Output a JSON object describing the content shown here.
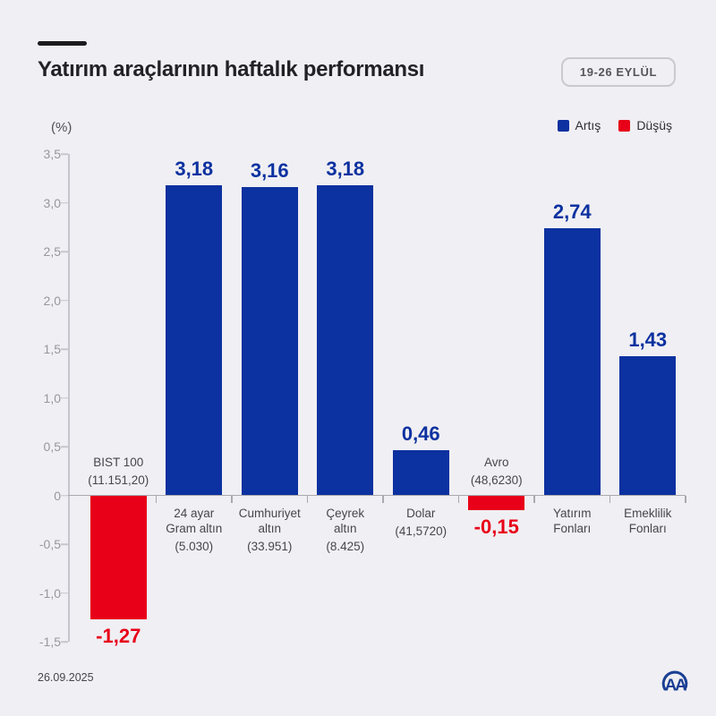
{
  "page": {
    "background": "#F0EFF3",
    "title": "Yatırım araçlarının haftalık performansı",
    "date_badge": "19-26 EYLÜL",
    "unit_label": "(%)",
    "footer_date": "26.09.2025",
    "logo_text": "AA"
  },
  "legend": {
    "up_label": "Artış",
    "down_label": "Düşüş"
  },
  "colors": {
    "up": "#0C31A0",
    "down": "#E80019",
    "axis": "#C6C6CC",
    "zero_line": "#A9A9AF",
    "tick_label": "#97979D",
    "category_label": "#46464C"
  },
  "chart_data": {
    "type": "bar",
    "title": "Yatırım araçlarının haftalık performansı",
    "subtitle": "19-26 EYLÜL",
    "ylabel": "(%)",
    "ylim": [
      -1.5,
      3.5
    ],
    "ytick_step": 0.5,
    "ytick_labels": [
      "3,5",
      "3,0",
      "2,5",
      "2,0",
      "1,5",
      "1,0",
      "0,5",
      "0",
      "-0,5",
      "-1,0",
      "-1,5"
    ],
    "grid": false,
    "legend_position": "top-right",
    "legend": [
      {
        "label": "Artış",
        "direction": "up"
      },
      {
        "label": "Düşüş",
        "direction": "down"
      }
    ],
    "categories": [
      {
        "name": "BIST 100",
        "lines": [
          "BIST 100"
        ],
        "sublabel": "(11.151,20)",
        "value": -1.27,
        "value_label": "-1,27",
        "direction": "down"
      },
      {
        "name": "24 ayar Gram altın",
        "lines": [
          "24 ayar",
          "Gram altın"
        ],
        "sublabel": "(5.030)",
        "value": 3.18,
        "value_label": "3,18",
        "direction": "up"
      },
      {
        "name": "Cumhuriyet altın",
        "lines": [
          "Cumhuriyet",
          "altın"
        ],
        "sublabel": "(33.951)",
        "value": 3.16,
        "value_label": "3,16",
        "direction": "up"
      },
      {
        "name": "Çeyrek altın",
        "lines": [
          "Çeyrek",
          "altın"
        ],
        "sublabel": "(8.425)",
        "value": 3.18,
        "value_label": "3,18",
        "direction": "up"
      },
      {
        "name": "Dolar",
        "lines": [
          "Dolar"
        ],
        "sublabel": "(41,5720)",
        "value": 0.46,
        "value_label": "0,46",
        "direction": "up"
      },
      {
        "name": "Avro",
        "lines": [
          "Avro"
        ],
        "sublabel": "(48,6230)",
        "value": -0.15,
        "value_label": "-0,15",
        "direction": "down"
      },
      {
        "name": "Yatırım Fonları",
        "lines": [
          "Yatırım",
          "Fonları"
        ],
        "sublabel": "",
        "value": 2.74,
        "value_label": "2,74",
        "direction": "up"
      },
      {
        "name": "Emeklilik Fonları",
        "lines": [
          "Emeklilik",
          "Fonları"
        ],
        "sublabel": "",
        "value": 1.43,
        "value_label": "1,43",
        "direction": "up"
      }
    ]
  }
}
